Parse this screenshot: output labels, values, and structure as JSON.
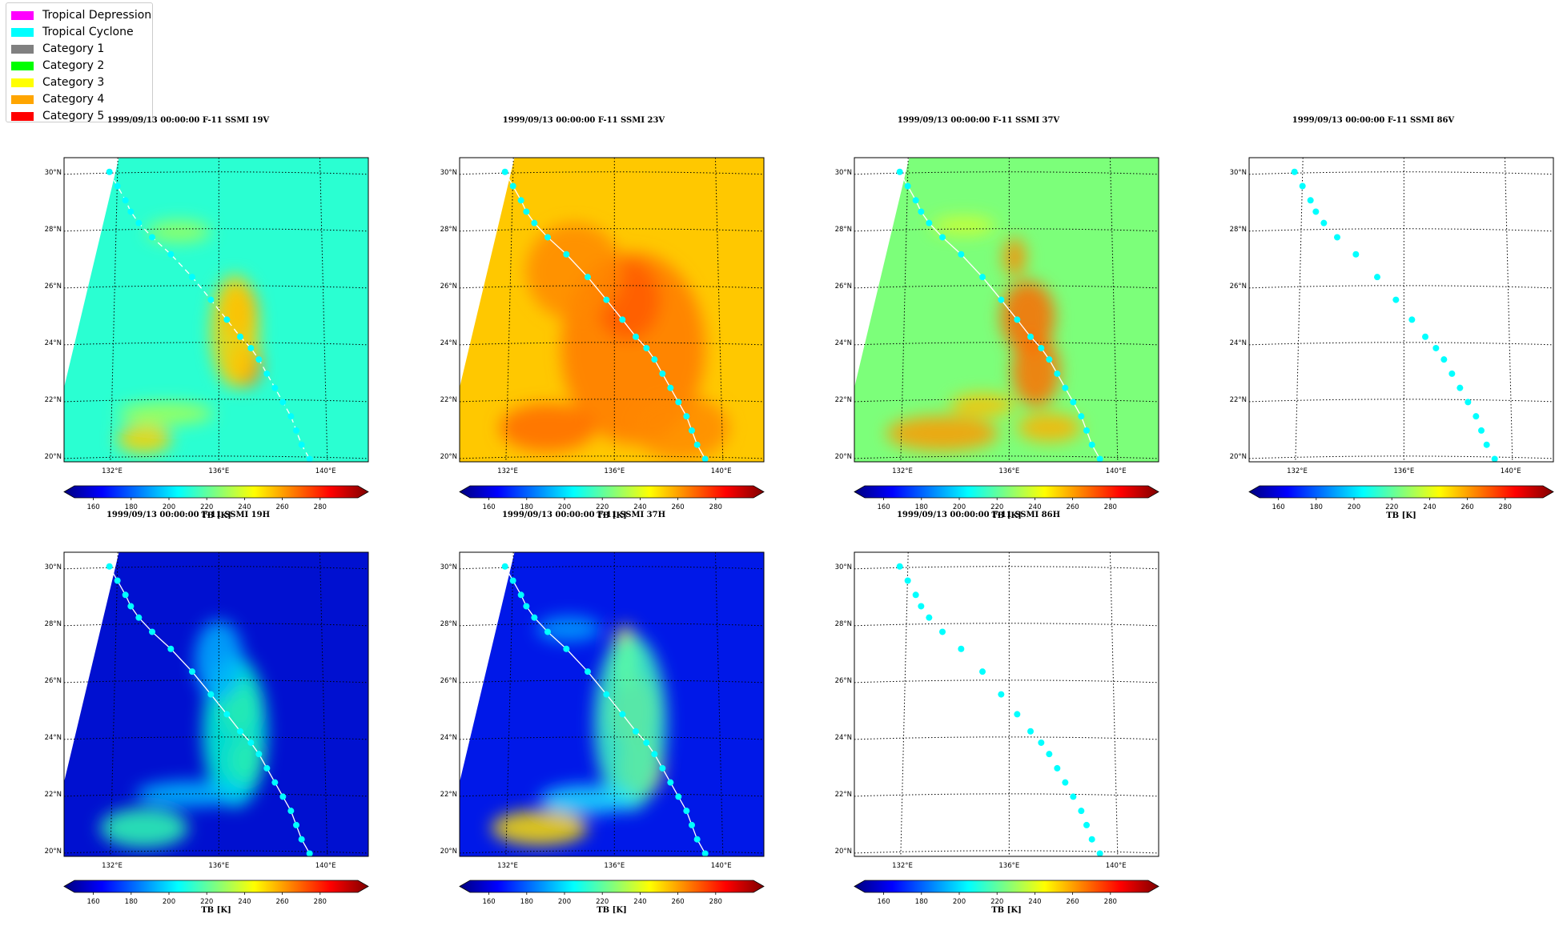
{
  "legend": {
    "items": [
      {
        "label": "Tropical Depression",
        "color": "#ff00ff"
      },
      {
        "label": "Tropical Cyclone",
        "color": "#00ffff"
      },
      {
        "label": "Category 1",
        "color": "#808080"
      },
      {
        "label": "Category 2",
        "color": "#00ff00"
      },
      {
        "label": "Category 3",
        "color": "#ffff00"
      },
      {
        "label": "Category 4",
        "color": "#ffa500"
      },
      {
        "label": "Category 5",
        "color": "#ff0000"
      }
    ]
  },
  "common": {
    "lat_ticks": [
      "20°N",
      "22°N",
      "24°N",
      "26°N",
      "28°N",
      "30°N"
    ],
    "lon_ticks": [
      "132°E",
      "136°E",
      "140°E"
    ],
    "colorbar_ticks": [
      "160",
      "180",
      "200",
      "220",
      "240",
      "260",
      "280"
    ],
    "colorbar_label": "TB [K]",
    "colormap": "jet",
    "colorbar_range": [
      150,
      300
    ]
  },
  "chart_data": [
    {
      "type": "heatmap",
      "title": "1999/09/13 00:00:00  F-11 SSMI 19V",
      "channel": "19V",
      "background": "#2affd2",
      "has_data": true,
      "track_line": "dashed",
      "xlabel": "TB [K]"
    },
    {
      "type": "heatmap",
      "title": "1999/09/13 00:00:00  F-11 SSMI 23V",
      "channel": "23V",
      "background": "#ffc800",
      "has_data": true,
      "track_line": "solid",
      "xlabel": "TB [K]"
    },
    {
      "type": "heatmap",
      "title": "1999/09/13 00:00:00  F-11 SSMI 37V",
      "channel": "37V",
      "background": "#7cff7a",
      "has_data": true,
      "track_line": "solid",
      "xlabel": "TB [K]"
    },
    {
      "type": "heatmap",
      "title": "1999/09/13 00:00:00  F-11 SSMI 86V",
      "channel": "86V",
      "background": "#ffffff",
      "has_data": false,
      "track_line": "none",
      "xlabel": "TB [K]"
    },
    {
      "type": "heatmap",
      "title": "1999/09/13 00:00:00  F-11 SSMI 19H",
      "channel": "19H",
      "background": "#0010d0",
      "has_data": true,
      "track_line": "solid",
      "xlabel": "TB [K]"
    },
    {
      "type": "heatmap",
      "title": "1999/09/13 00:00:00  F-11 SSMI 37H",
      "channel": "37H",
      "background": "#0018e8",
      "has_data": true,
      "track_line": "solid",
      "xlabel": "TB [K]"
    },
    {
      "type": "heatmap",
      "title": "1999/09/13 00:00:00  F-11 SSMI 86H",
      "channel": "86H",
      "background": "#ffffff",
      "has_data": false,
      "track_line": "none",
      "xlabel": "TB [K]"
    }
  ],
  "track": {
    "color": "#00ffff",
    "points": [
      {
        "lon": 131.9,
        "lat": 30.0
      },
      {
        "lon": 132.2,
        "lat": 29.5
      },
      {
        "lon": 132.5,
        "lat": 29.0
      },
      {
        "lon": 132.7,
        "lat": 28.6
      },
      {
        "lon": 133.0,
        "lat": 28.2
      },
      {
        "lon": 133.5,
        "lat": 27.7
      },
      {
        "lon": 134.2,
        "lat": 27.1
      },
      {
        "lon": 135.0,
        "lat": 26.3
      },
      {
        "lon": 135.7,
        "lat": 25.5
      },
      {
        "lon": 136.3,
        "lat": 24.8
      },
      {
        "lon": 136.8,
        "lat": 24.2
      },
      {
        "lon": 137.2,
        "lat": 23.8
      },
      {
        "lon": 137.5,
        "lat": 23.4
      },
      {
        "lon": 137.8,
        "lat": 22.9
      },
      {
        "lon": 138.1,
        "lat": 22.4
      },
      {
        "lon": 138.4,
        "lat": 21.9
      },
      {
        "lon": 138.7,
        "lat": 21.4
      },
      {
        "lon": 138.9,
        "lat": 20.9
      },
      {
        "lon": 139.1,
        "lat": 20.4
      },
      {
        "lon": 139.4,
        "lat": 19.9
      }
    ]
  }
}
